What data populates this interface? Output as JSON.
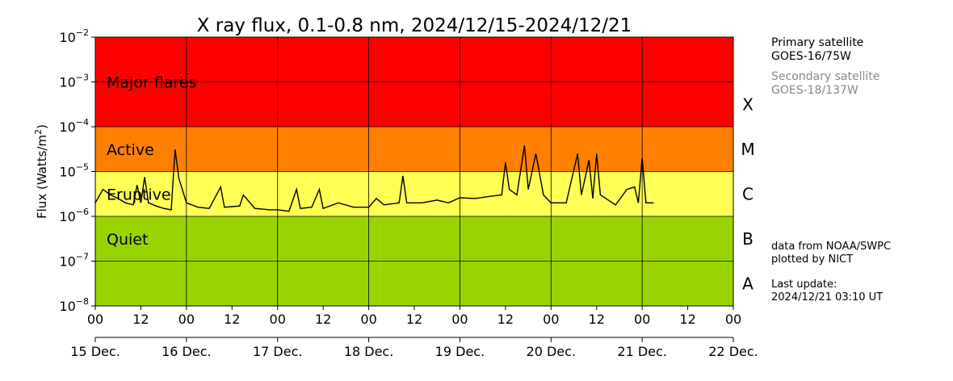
{
  "chart_data": {
    "type": "line",
    "title": "X ray flux, 0.1-0.8 nm, 2024/12/15-2024/12/21",
    "ylabel": "Flux (Watts/m",
    "ylabel_sup": "2",
    "ylabel_close": ")",
    "yscale": "log",
    "ylim": [
      1e-08,
      0.01
    ],
    "y_ticks": [
      {
        "value": 1e-08,
        "base": "10",
        "exp": "−8"
      },
      {
        "value": 1e-07,
        "base": "10",
        "exp": "−7"
      },
      {
        "value": 1e-06,
        "base": "10",
        "exp": "−6"
      },
      {
        "value": 1e-05,
        "base": "10",
        "exp": "−5"
      },
      {
        "value": 0.0001,
        "base": "10",
        "exp": "−4"
      },
      {
        "value": 0.001,
        "base": "10",
        "exp": "−3"
      },
      {
        "value": 0.01,
        "base": "10",
        "exp": "−2"
      }
    ],
    "xlim": [
      "2024-12-15T00:00",
      "2024-12-22T00:00"
    ],
    "x_hour_ticks": [
      "00",
      "12",
      "00",
      "12",
      "00",
      "12",
      "00",
      "12",
      "00",
      "12",
      "00",
      "12",
      "00",
      "12",
      "00"
    ],
    "x_day_labels": [
      "15 Dec.",
      "16 Dec.",
      "17 Dec.",
      "18 Dec.",
      "19 Dec.",
      "20 Dec.",
      "21 Dec.",
      "22 Dec."
    ],
    "bands": [
      {
        "label": "Major flares",
        "class": "X",
        "range": [
          0.0001,
          0.01
        ],
        "color": "#ff0000"
      },
      {
        "label": "Active",
        "class": "M",
        "range": [
          1e-05,
          0.0001
        ],
        "color": "#ff7f00"
      },
      {
        "label": "Eruptive",
        "class": "C",
        "range": [
          1e-06,
          1e-05
        ],
        "color": "#ffff55"
      },
      {
        "label": "Quiet",
        "class": "B",
        "range": [
          1e-07,
          1e-06
        ],
        "color": "#99d400"
      },
      {
        "label": "",
        "class": "A",
        "range": [
          1e-08,
          1e-07
        ],
        "color": "#99d400"
      }
    ],
    "grid": true,
    "series": [
      {
        "color": "#000000",
        "points": [
          [
            "2024-12-15T00:00",
            2e-06
          ],
          [
            "2024-12-15T02:00",
            4e-06
          ],
          [
            "2024-12-15T04:00",
            3e-06
          ],
          [
            "2024-12-15T06:00",
            2.5e-06
          ],
          [
            "2024-12-15T08:00",
            2e-06
          ],
          [
            "2024-12-15T10:00",
            1.8e-06
          ],
          [
            "2024-12-15T11:00",
            5e-06
          ],
          [
            "2024-12-15T12:00",
            2e-06
          ],
          [
            "2024-12-15T13:00",
            7.5e-06
          ],
          [
            "2024-12-15T14:00",
            2e-06
          ],
          [
            "2024-12-15T16:00",
            1.7e-06
          ],
          [
            "2024-12-15T18:00",
            1.5e-06
          ],
          [
            "2024-12-15T20:00",
            1.4e-06
          ],
          [
            "2024-12-15T21:00",
            3.1e-05
          ],
          [
            "2024-12-15T22:00",
            7e-06
          ],
          [
            "2024-12-16T00:00",
            2e-06
          ],
          [
            "2024-12-16T03:00",
            1.6e-06
          ],
          [
            "2024-12-16T06:00",
            1.5e-06
          ],
          [
            "2024-12-16T09:00",
            4.5e-06
          ],
          [
            "2024-12-16T10:00",
            1.6e-06
          ],
          [
            "2024-12-16T14:00",
            1.7e-06
          ],
          [
            "2024-12-16T15:00",
            3e-06
          ],
          [
            "2024-12-16T18:00",
            1.5e-06
          ],
          [
            "2024-12-16T22:00",
            1.4e-06
          ],
          [
            "2024-12-17T00:00",
            1.4e-06
          ],
          [
            "2024-12-17T03:00",
            1.3e-06
          ],
          [
            "2024-12-17T05:00",
            4e-06
          ],
          [
            "2024-12-17T06:00",
            1.5e-06
          ],
          [
            "2024-12-17T09:00",
            1.6e-06
          ],
          [
            "2024-12-17T11:00",
            4e-06
          ],
          [
            "2024-12-17T12:00",
            1.5e-06
          ],
          [
            "2024-12-17T16:00",
            2e-06
          ],
          [
            "2024-12-17T20:00",
            1.6e-06
          ],
          [
            "2024-12-18T00:00",
            1.6e-06
          ],
          [
            "2024-12-18T02:00",
            2.5e-06
          ],
          [
            "2024-12-18T04:00",
            1.8e-06
          ],
          [
            "2024-12-18T08:00",
            2e-06
          ],
          [
            "2024-12-18T09:00",
            8e-06
          ],
          [
            "2024-12-18T10:00",
            2e-06
          ],
          [
            "2024-12-18T14:00",
            2e-06
          ],
          [
            "2024-12-18T18:00",
            2.3e-06
          ],
          [
            "2024-12-18T21:00",
            2e-06
          ],
          [
            "2024-12-19T00:00",
            2.6e-06
          ],
          [
            "2024-12-19T04:00",
            2.5e-06
          ],
          [
            "2024-12-19T08:00",
            2.8e-06
          ],
          [
            "2024-12-19T11:00",
            3e-06
          ],
          [
            "2024-12-19T12:00",
            1.6e-05
          ],
          [
            "2024-12-19T13:00",
            4e-06
          ],
          [
            "2024-12-19T15:00",
            3e-06
          ],
          [
            "2024-12-19T17:00",
            3.8e-05
          ],
          [
            "2024-12-19T18:00",
            4e-06
          ],
          [
            "2024-12-19T20:00",
            2.5e-05
          ],
          [
            "2024-12-19T22:00",
            3e-06
          ],
          [
            "2024-12-20T00:00",
            2e-06
          ],
          [
            "2024-12-20T04:00",
            2e-06
          ],
          [
            "2024-12-20T07:00",
            2.5e-05
          ],
          [
            "2024-12-20T08:00",
            3e-06
          ],
          [
            "2024-12-20T10:00",
            1.8e-05
          ],
          [
            "2024-12-20T11:00",
            2.5e-06
          ],
          [
            "2024-12-20T12:00",
            2.5e-05
          ],
          [
            "2024-12-20T13:00",
            3e-06
          ],
          [
            "2024-12-20T17:00",
            1.8e-06
          ],
          [
            "2024-12-20T20:00",
            4e-06
          ],
          [
            "2024-12-20T22:00",
            4.5e-06
          ],
          [
            "2024-12-20T23:00",
            2e-06
          ],
          [
            "2024-12-21T00:00",
            2e-05
          ],
          [
            "2024-12-21T01:00",
            2e-06
          ],
          [
            "2024-12-21T03:00",
            2e-06
          ]
        ]
      }
    ]
  },
  "legend": {
    "primary_label": "Primary satellite",
    "primary_value": "GOES-16/75W",
    "primary_color": "#000000",
    "secondary_label": "Secondary satellite",
    "secondary_value": "GOES-18/137W",
    "secondary_color": "#888888"
  },
  "credits": {
    "line1": "data from NOAA/SWPC",
    "line2": "plotted by NICT"
  },
  "update": {
    "label": "Last update:",
    "value": "2024/12/21 03:10 UT"
  }
}
